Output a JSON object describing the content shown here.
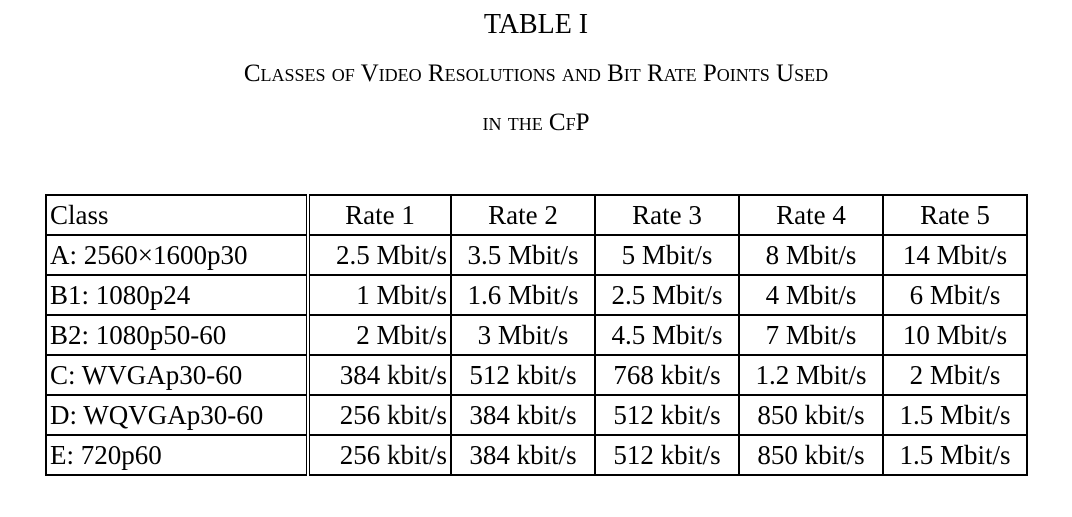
{
  "caption": {
    "label": "TABLE I",
    "title_line1": "Classes of Video Resolutions and Bit Rate Points Used",
    "title_line2": "in the CfP"
  },
  "table": {
    "headers": [
      "Class",
      "Rate 1",
      "Rate 2",
      "Rate 3",
      "Rate 4",
      "Rate 5"
    ],
    "rows": [
      [
        "A: 2560×1600p30",
        "2.5 Mbit/s",
        "3.5 Mbit/s",
        "5 Mbit/s",
        "8 Mbit/s",
        "14 Mbit/s"
      ],
      [
        "B1: 1080p24",
        "1 Mbit/s",
        "1.6 Mbit/s",
        "2.5 Mbit/s",
        "4 Mbit/s",
        "6 Mbit/s"
      ],
      [
        "B2: 1080p50-60",
        "2 Mbit/s",
        "3 Mbit/s",
        "4.5 Mbit/s",
        "7 Mbit/s",
        "10 Mbit/s"
      ],
      [
        "C: WVGAp30-60",
        "384 kbit/s",
        "512 kbit/s",
        "768 kbit/s",
        "1.2 Mbit/s",
        "2 Mbit/s"
      ],
      [
        "D: WQVGAp30-60",
        "256 kbit/s",
        "384 kbit/s",
        "512 kbit/s",
        "850 kbit/s",
        "1.5 Mbit/s"
      ],
      [
        "E: 720p60",
        "256 kbit/s",
        "384 kbit/s",
        "512 kbit/s",
        "850 kbit/s",
        "1.5 Mbit/s"
      ]
    ]
  }
}
